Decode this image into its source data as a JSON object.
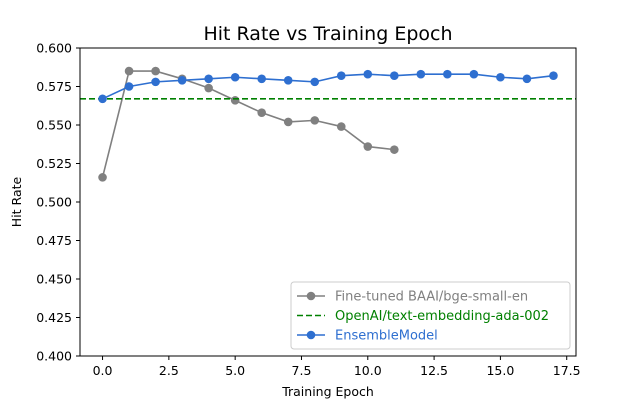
{
  "chart_data": {
    "type": "line",
    "title": "Hit Rate vs Training Epoch",
    "xlabel": "Training Epoch",
    "ylabel": "Hit Rate",
    "xlim": [
      -0.85,
      17.85
    ],
    "ylim": [
      0.4,
      0.6
    ],
    "xticks": [
      "0.0",
      "2.5",
      "5.0",
      "7.5",
      "10.0",
      "12.5",
      "15.0",
      "17.5"
    ],
    "xtick_values": [
      0,
      2.5,
      5,
      7.5,
      10,
      12.5,
      15,
      17.5
    ],
    "yticks": [
      "0.400",
      "0.425",
      "0.450",
      "0.475",
      "0.500",
      "0.525",
      "0.550",
      "0.575",
      "0.600"
    ],
    "ytick_values": [
      0.4,
      0.425,
      0.45,
      0.475,
      0.5,
      0.525,
      0.55,
      0.575,
      0.6
    ],
    "grid": false,
    "legend_position": "bottom-right",
    "series": [
      {
        "name": " Fine-tuned BAAI/bge-small-en",
        "color": "#808080",
        "style": "solid-marker",
        "x": [
          0,
          1,
          2,
          3,
          4,
          5,
          6,
          7,
          8,
          9,
          10,
          11
        ],
        "y": [
          0.516,
          0.585,
          0.585,
          0.58,
          0.574,
          0.566,
          0.558,
          0.552,
          0.553,
          0.549,
          0.536,
          0.534
        ]
      },
      {
        "name": "OpenAI/text-embedding-ada-002",
        "color": "#008000",
        "style": "dashed",
        "hline": 0.567
      },
      {
        "name": "EnsembleModel",
        "color": "#2e6fd0",
        "style": "solid-marker",
        "x": [
          0,
          1,
          2,
          3,
          4,
          5,
          6,
          7,
          8,
          9,
          10,
          11,
          12,
          13,
          14,
          15,
          16,
          17
        ],
        "y": [
          0.567,
          0.575,
          0.578,
          0.579,
          0.58,
          0.581,
          0.58,
          0.579,
          0.578,
          0.582,
          0.583,
          0.582,
          0.583,
          0.583,
          0.583,
          0.581,
          0.58,
          0.582
        ]
      }
    ]
  }
}
